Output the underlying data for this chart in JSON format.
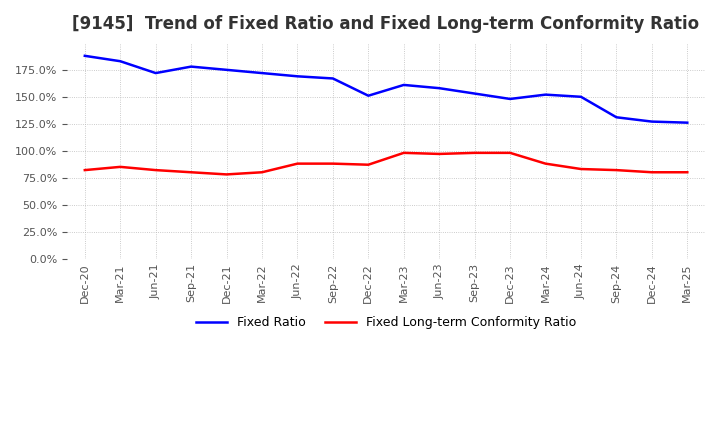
{
  "title": "[9145]  Trend of Fixed Ratio and Fixed Long-term Conformity Ratio",
  "title_fontsize": 12,
  "fixed_ratio": {
    "label": "Fixed Ratio",
    "color": "#0000FF",
    "dates": [
      "Dec-20",
      "Mar-21",
      "Jun-21",
      "Sep-21",
      "Dec-21",
      "Mar-22",
      "Jun-22",
      "Sep-22",
      "Dec-22",
      "Mar-23",
      "Jun-23",
      "Sep-23",
      "Dec-23",
      "Mar-24",
      "Jun-24",
      "Sep-24",
      "Dec-24",
      "Mar-25"
    ],
    "values": [
      188,
      183,
      172,
      178,
      175,
      172,
      169,
      167,
      151,
      161,
      158,
      153,
      148,
      152,
      150,
      131,
      127,
      126
    ]
  },
  "fixed_lt_ratio": {
    "label": "Fixed Long-term Conformity Ratio",
    "color": "#FF0000",
    "dates": [
      "Dec-20",
      "Mar-21",
      "Jun-21",
      "Sep-21",
      "Dec-21",
      "Mar-22",
      "Jun-22",
      "Sep-22",
      "Dec-22",
      "Mar-23",
      "Jun-23",
      "Sep-23",
      "Dec-23",
      "Mar-24",
      "Jun-24",
      "Sep-24",
      "Dec-24",
      "Mar-25"
    ],
    "values": [
      82,
      85,
      82,
      80,
      78,
      80,
      88,
      88,
      87,
      98,
      97,
      98,
      98,
      88,
      83,
      82,
      80,
      80
    ]
  },
  "ylim": [
    0,
    200
  ],
  "yticks": [
    0,
    25,
    50,
    75,
    100,
    125,
    150,
    175
  ],
  "grid_color": "#BBBBBB",
  "background_color": "#FFFFFF",
  "legend_ncol": 2,
  "tick_color": "#555555",
  "tick_fontsize": 8,
  "line_width": 1.8
}
